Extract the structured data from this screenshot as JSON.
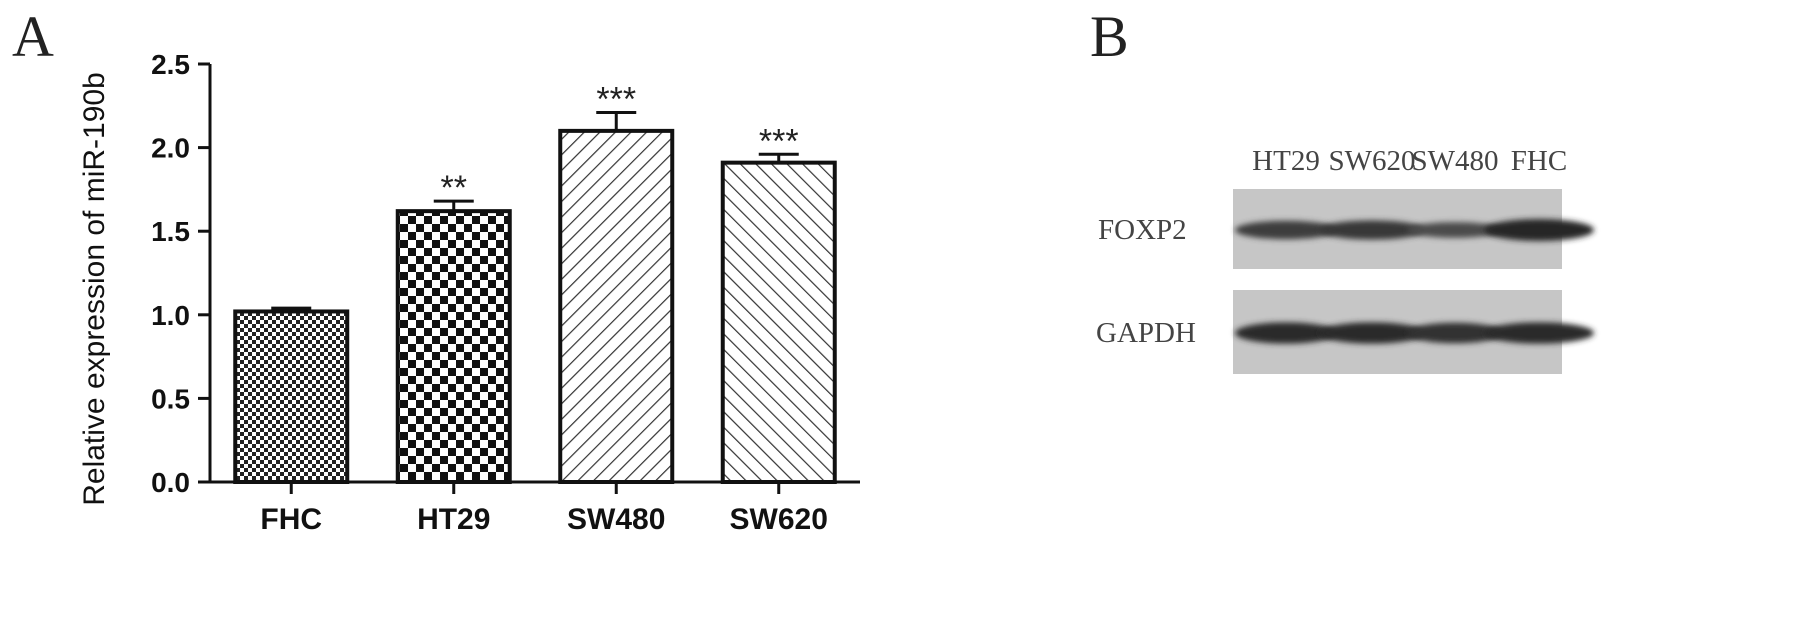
{
  "panel_a_letter": "A",
  "panel_b_letter": "B",
  "chart_data": {
    "type": "bar",
    "title": "",
    "xlabel": "",
    "ylabel": "Relative expression of miR-190b",
    "ylim": [
      0,
      2.5
    ],
    "yticks": [
      "0.0",
      "0.5",
      "1.0",
      "1.5",
      "2.0",
      "2.5"
    ],
    "categories": [
      "FHC",
      "HT29",
      "SW480",
      "SW620"
    ],
    "values": [
      1.02,
      1.62,
      2.1,
      1.91
    ],
    "errors": [
      0.02,
      0.06,
      0.11,
      0.05
    ],
    "significance": [
      "",
      "**",
      "***",
      "***"
    ],
    "patterns": [
      "fine-checker",
      "checker",
      "diagonal-up",
      "diagonal-down"
    ],
    "grid": false,
    "legend": "none"
  },
  "western_blot": {
    "lanes": [
      "HT29",
      "SW620",
      "SW480",
      "FHC"
    ],
    "rows": [
      {
        "protein": "FOXP2",
        "band_intensity": [
          0.75,
          0.8,
          0.55,
          1.0
        ]
      },
      {
        "protein": "GAPDH",
        "band_intensity": [
          0.95,
          0.95,
          0.9,
          0.95
        ]
      }
    ]
  }
}
